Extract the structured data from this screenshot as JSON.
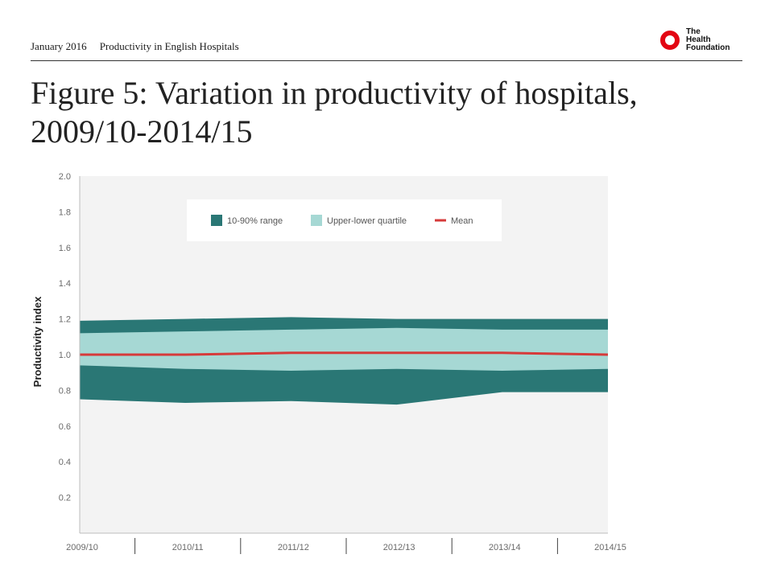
{
  "header": {
    "date": "January 2016",
    "publication": "Productivity in English Hospitals"
  },
  "logo": {
    "lines": [
      "The",
      "Health",
      "Foundation"
    ],
    "accent_color": "#e30613"
  },
  "title": "Figure 5: Variation in productivity of hospitals, 2009/10-2014/15",
  "chart_data": {
    "type": "area",
    "categories": [
      "2009/10",
      "2010/11",
      "2011/12",
      "2012/13",
      "2013/14",
      "2014/15"
    ],
    "ylabel": "Productivity index",
    "xlabel": "",
    "ylim": [
      0,
      2.0
    ],
    "yticks": [
      0.2,
      0.4,
      0.6,
      0.8,
      1.0,
      1.2,
      1.4,
      1.6,
      1.8,
      2.0
    ],
    "ytick_labels": [
      "0.2",
      "0.4",
      "0.6",
      "0.8",
      "1.0",
      "1.2",
      "1.4",
      "1.6",
      "1.8",
      "2.0"
    ],
    "grid": false,
    "legend_position": "top-center",
    "series": [
      {
        "name": "10-90% range",
        "color": "#2a7775",
        "lower": [
          0.75,
          0.73,
          0.74,
          0.72,
          0.79,
          0.79
        ],
        "upper": [
          1.19,
          1.2,
          1.21,
          1.2,
          1.2,
          1.2
        ]
      },
      {
        "name": "Upper-lower quartile",
        "color": "#a6d8d4",
        "lower": [
          0.94,
          0.92,
          0.91,
          0.92,
          0.91,
          0.92
        ],
        "upper": [
          1.12,
          1.13,
          1.14,
          1.15,
          1.14,
          1.14
        ]
      },
      {
        "name": "Mean",
        "color": "#d63a3a",
        "values": [
          1.0,
          1.0,
          1.01,
          1.01,
          1.01,
          1.0
        ]
      }
    ],
    "plot_background": "#f3f3f3"
  }
}
